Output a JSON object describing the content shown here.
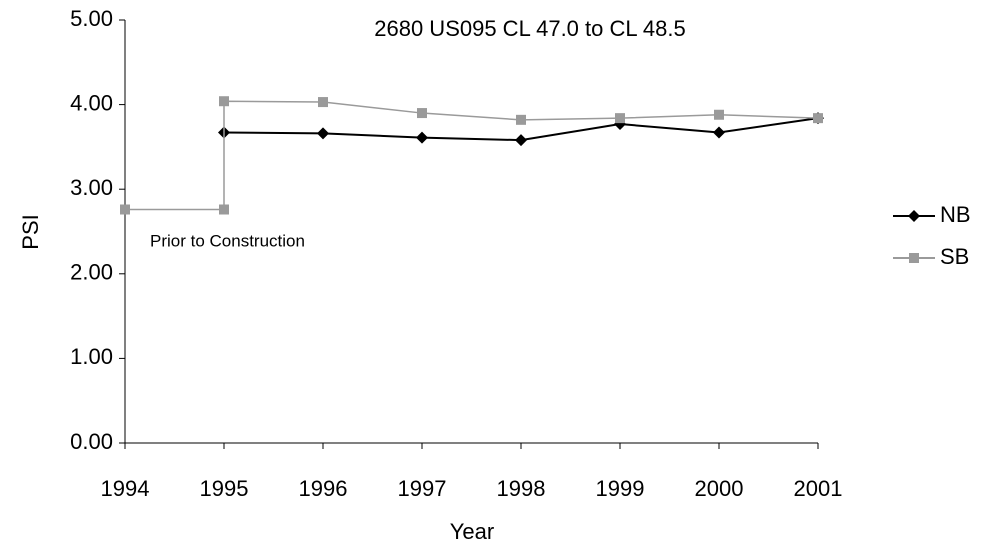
{
  "chart_data": {
    "type": "line",
    "title": "2680 US095 CL 47.0 to CL 48.5",
    "x_label": "Year",
    "y_label": "PSI",
    "annotation": "Prior to Construction",
    "series": [
      {
        "name": "NB",
        "color": "#000000",
        "marker": "diamond",
        "x": [
          1995,
          1996,
          1997,
          1998,
          1999,
          2000,
          2001
        ],
        "values": [
          3.67,
          3.66,
          3.61,
          3.58,
          3.77,
          3.67,
          3.84
        ]
      },
      {
        "name": "SB",
        "color": "#9a9a9a",
        "marker": "square",
        "x": [
          1994,
          1995,
          1995,
          1996,
          1997,
          1998,
          1999,
          2000,
          2001
        ],
        "values": [
          2.76,
          2.76,
          4.04,
          4.03,
          3.9,
          3.82,
          3.84,
          3.88,
          3.84
        ]
      }
    ],
    "xlim": [
      1994,
      2001
    ],
    "xticks": [
      1994,
      1995,
      1996,
      1997,
      1998,
      1999,
      2000,
      2001
    ],
    "ylim": [
      0,
      5
    ],
    "yticks": [
      {
        "value": 0,
        "label": "0.00"
      },
      {
        "value": 1,
        "label": "1.00"
      },
      {
        "value": 2,
        "label": "2.00"
      },
      {
        "value": 3,
        "label": "3.00"
      },
      {
        "value": 4,
        "label": "4.00"
      },
      {
        "value": 5,
        "label": "5.00"
      }
    ],
    "grid": false,
    "legend": "right"
  }
}
